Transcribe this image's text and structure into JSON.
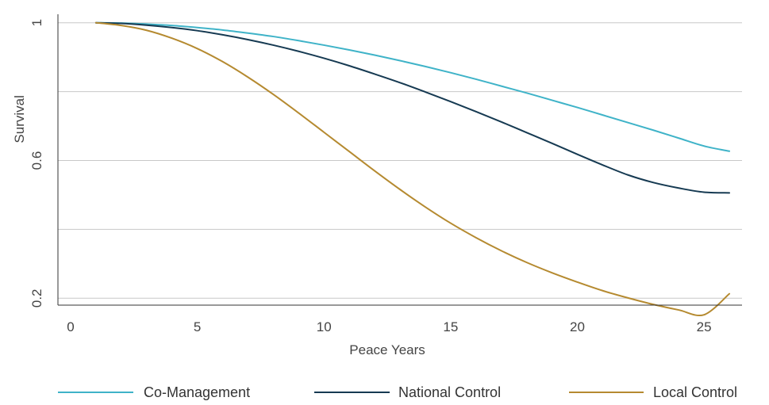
{
  "chart_data": {
    "type": "line",
    "title": "",
    "xlabel": "Peace Years",
    "ylabel": "Survival",
    "xlim": [
      -0.5,
      26.5
    ],
    "ylim": [
      0.18,
      1.02
    ],
    "xticks": [
      0,
      5,
      10,
      15,
      20,
      25
    ],
    "xtick_labels": [
      "0",
      "5",
      "10",
      "15",
      "20",
      "25"
    ],
    "yticks": [
      0.2,
      0.6,
      1.0
    ],
    "ytick_labels": [
      "0.2",
      "0.6",
      "1"
    ],
    "gridlines_y": [
      0.2,
      0.4,
      0.6,
      0.8,
      1.0
    ],
    "grid": true,
    "legend_position": "bottom",
    "x": [
      1,
      2,
      3,
      4,
      5,
      6,
      7,
      8,
      9,
      10,
      11,
      12,
      13,
      14,
      15,
      16,
      17,
      18,
      19,
      20,
      21,
      22,
      23,
      24,
      25,
      26
    ],
    "series": [
      {
        "name": "Co-Management",
        "color": "#3fb3c8",
        "values": [
          1.0,
          0.999,
          0.996,
          0.992,
          0.986,
          0.979,
          0.97,
          0.96,
          0.948,
          0.935,
          0.921,
          0.906,
          0.89,
          0.873,
          0.855,
          0.836,
          0.816,
          0.796,
          0.775,
          0.754,
          0.732,
          0.71,
          0.688,
          0.665,
          0.642,
          0.627
        ]
      },
      {
        "name": "National Control",
        "color": "#163a52",
        "values": [
          1.0,
          0.998,
          0.993,
          0.986,
          0.977,
          0.965,
          0.951,
          0.935,
          0.917,
          0.897,
          0.875,
          0.851,
          0.826,
          0.799,
          0.771,
          0.742,
          0.712,
          0.681,
          0.65,
          0.618,
          0.587,
          0.558,
          0.536,
          0.52,
          0.508,
          0.506
        ]
      },
      {
        "name": "Local Control",
        "color": "#b58a30",
        "values": [
          1.0,
          0.992,
          0.978,
          0.955,
          0.925,
          0.887,
          0.842,
          0.792,
          0.738,
          0.682,
          0.626,
          0.57,
          0.516,
          0.465,
          0.418,
          0.376,
          0.338,
          0.304,
          0.274,
          0.247,
          0.222,
          0.201,
          0.182,
          0.166,
          0.152,
          0.213
        ]
      }
    ]
  }
}
